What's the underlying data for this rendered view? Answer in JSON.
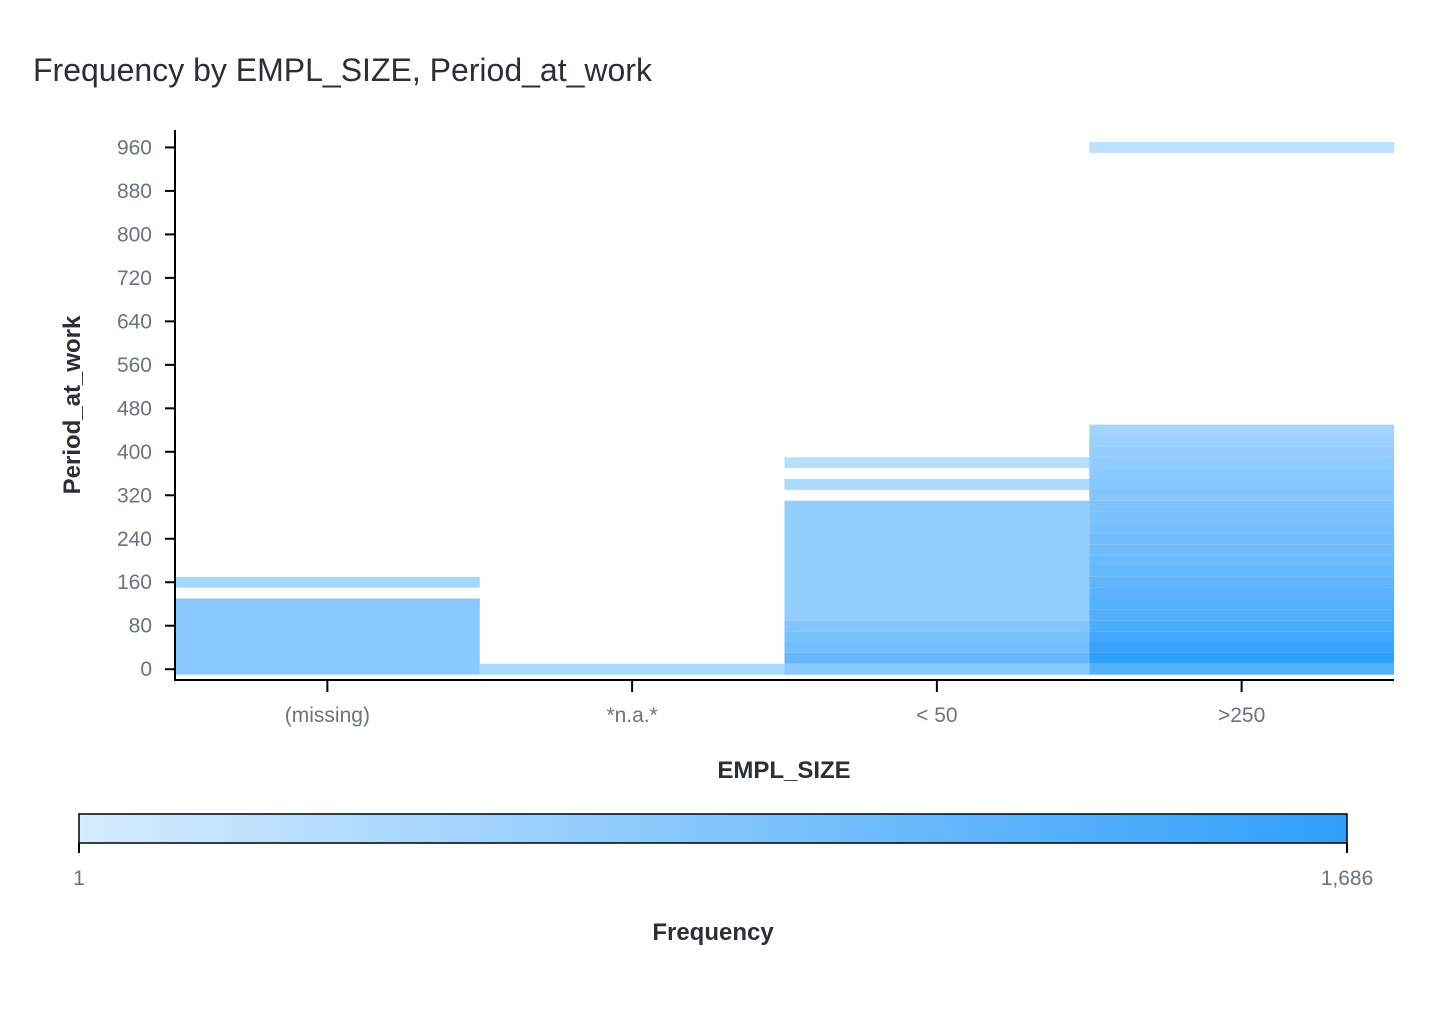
{
  "chart_data": {
    "type": "heatmap",
    "title": "Frequency by EMPL_SIZE, Period_at_work",
    "xlabel": "EMPL_SIZE",
    "ylabel": "Period_at_work",
    "categories": [
      "(missing)",
      "*n.a.*",
      "< 50",
      ">250"
    ],
    "y_ticks": [
      0,
      80,
      160,
      240,
      320,
      400,
      480,
      560,
      640,
      720,
      800,
      880,
      960
    ],
    "y_tick_labels": [
      "0",
      "80",
      "160",
      "240",
      "320",
      "400",
      "480",
      "560",
      "640",
      "720",
      "800",
      "880",
      "960"
    ],
    "ylim": [
      -10,
      990
    ],
    "bin_width": 20,
    "colorbar": {
      "title": "Frequency",
      "min": 1,
      "max": 1686,
      "min_label": "1",
      "max_label": "1,686",
      "color_low": "#d6ecff",
      "color_high": "#2f9ffc"
    },
    "cells": [
      {
        "x": "(missing)",
        "y0": -10,
        "y1": 130,
        "value": 30
      },
      {
        "x": "(missing)",
        "y0": 150,
        "y1": 170,
        "value": 8
      },
      {
        "x": "*n.a.*",
        "y0": -10,
        "y1": 10,
        "value": 6
      },
      {
        "x": "< 50",
        "y0": -10,
        "y1": 10,
        "value": 30
      },
      {
        "x": "< 50",
        "y0": 10,
        "y1": 30,
        "value": 150
      },
      {
        "x": "< 50",
        "y0": 30,
        "y1": 50,
        "value": 90
      },
      {
        "x": "< 50",
        "y0": 50,
        "y1": 70,
        "value": 60
      },
      {
        "x": "< 50",
        "y0": 70,
        "y1": 90,
        "value": 40
      },
      {
        "x": "< 50",
        "y0": 90,
        "y1": 310,
        "value": 20
      },
      {
        "x": "< 50",
        "y0": 330,
        "y1": 350,
        "value": 6
      },
      {
        "x": "< 50",
        "y0": 370,
        "y1": 390,
        "value": 4
      },
      {
        "x": ">250",
        "y0": -10,
        "y1": 10,
        "value": 300
      },
      {
        "x": ">250",
        "y0": 10,
        "y1": 30,
        "value": 1686
      },
      {
        "x": ">250",
        "y0": 30,
        "y1": 50,
        "value": 1100
      },
      {
        "x": ">250",
        "y0": 50,
        "y1": 70,
        "value": 700
      },
      {
        "x": ">250",
        "y0": 70,
        "y1": 90,
        "value": 500
      },
      {
        "x": ">250",
        "y0": 90,
        "y1": 110,
        "value": 380
      },
      {
        "x": ">250",
        "y0": 110,
        "y1": 130,
        "value": 300
      },
      {
        "x": ">250",
        "y0": 130,
        "y1": 150,
        "value": 240
      },
      {
        "x": ">250",
        "y0": 150,
        "y1": 170,
        "value": 190
      },
      {
        "x": ">250",
        "y0": 170,
        "y1": 190,
        "value": 150
      },
      {
        "x": ">250",
        "y0": 190,
        "y1": 210,
        "value": 120
      },
      {
        "x": ">250",
        "y0": 210,
        "y1": 230,
        "value": 100
      },
      {
        "x": ">250",
        "y0": 230,
        "y1": 250,
        "value": 85
      },
      {
        "x": ">250",
        "y0": 250,
        "y1": 270,
        "value": 70
      },
      {
        "x": ">250",
        "y0": 270,
        "y1": 290,
        "value": 60
      },
      {
        "x": ">250",
        "y0": 290,
        "y1": 310,
        "value": 50
      },
      {
        "x": ">250",
        "y0": 310,
        "y1": 330,
        "value": 40
      },
      {
        "x": ">250",
        "y0": 330,
        "y1": 350,
        "value": 35
      },
      {
        "x": ">250",
        "y0": 350,
        "y1": 370,
        "value": 30
      },
      {
        "x": ">250",
        "y0": 370,
        "y1": 390,
        "value": 25
      },
      {
        "x": ">250",
        "y0": 390,
        "y1": 410,
        "value": 20
      },
      {
        "x": ">250",
        "y0": 410,
        "y1": 430,
        "value": 15
      },
      {
        "x": ">250",
        "y0": 430,
        "y1": 450,
        "value": 10
      },
      {
        "x": ">250",
        "y0": 950,
        "y1": 970,
        "value": 3
      }
    ]
  }
}
